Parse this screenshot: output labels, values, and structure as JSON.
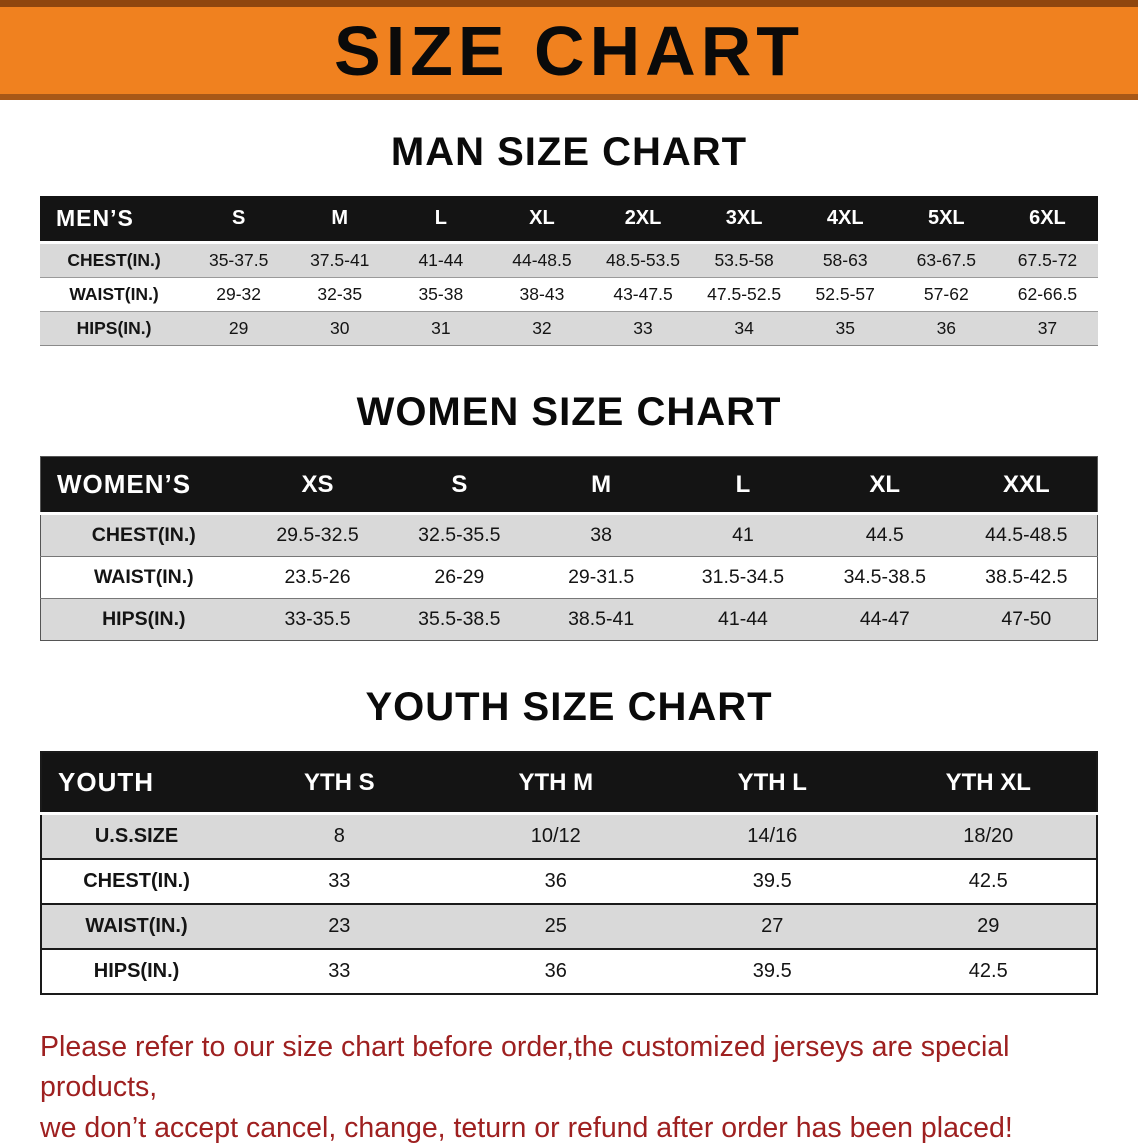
{
  "banner": {
    "title": "SIZE CHART",
    "bg_color": "#f0811f",
    "edge_color": "#8f460e",
    "title_color": "#0a0a0a"
  },
  "men": {
    "heading": "MAN SIZE CHART",
    "table": {
      "header": [
        "MEN’S",
        "S",
        "M",
        "L",
        "XL",
        "2XL",
        "3XL",
        "4XL",
        "5XL",
        "6XL"
      ],
      "rows": [
        [
          "CHEST(IN.)",
          "35-37.5",
          "37.5-41",
          "41-44",
          "44-48.5",
          "48.5-53.5",
          "53.5-58",
          "58-63",
          "63-67.5",
          "67.5-72"
        ],
        [
          "WAIST(IN.)",
          "29-32",
          "32-35",
          "35-38",
          "38-43",
          "43-47.5",
          "47.5-52.5",
          "52.5-57",
          "57-62",
          "62-66.5"
        ],
        [
          "HIPS(IN.)",
          "29",
          "30",
          "31",
          "32",
          "33",
          "34",
          "35",
          "36",
          "37"
        ]
      ]
    }
  },
  "women": {
    "heading": "WOMEN SIZE CHART",
    "table": {
      "header": [
        "WOMEN’S",
        "XS",
        "S",
        "M",
        "L",
        "XL",
        "XXL"
      ],
      "rows": [
        [
          "CHEST(IN.)",
          "29.5-32.5",
          "32.5-35.5",
          "38",
          "41",
          "44.5",
          "44.5-48.5"
        ],
        [
          "WAIST(IN.)",
          "23.5-26",
          "26-29",
          "29-31.5",
          "31.5-34.5",
          "34.5-38.5",
          "38.5-42.5"
        ],
        [
          "HIPS(IN.)",
          "33-35.5",
          "35.5-38.5",
          "38.5-41",
          "41-44",
          "44-47",
          "47-50"
        ]
      ]
    }
  },
  "youth": {
    "heading": "YOUTH SIZE CHART",
    "table": {
      "header": [
        "YOUTH",
        "YTH S",
        "YTH M",
        "YTH L",
        "YTH XL"
      ],
      "rows": [
        [
          "U.S.SIZE",
          "8",
          "10/12",
          "14/16",
          "18/20"
        ],
        [
          "CHEST(IN.)",
          "33",
          "36",
          "39.5",
          "42.5"
        ],
        [
          "WAIST(IN.)",
          "23",
          "25",
          "27",
          "29"
        ],
        [
          "HIPS(IN.)",
          "33",
          "36",
          "39.5",
          "42.5"
        ]
      ]
    }
  },
  "footer": {
    "line1": "Please refer to our size chart before order,the customized jerseys are special products,",
    "line2": "we don’t accept cancel, change, teturn or refund after order has been placed!",
    "text_color": "#9e2020"
  }
}
